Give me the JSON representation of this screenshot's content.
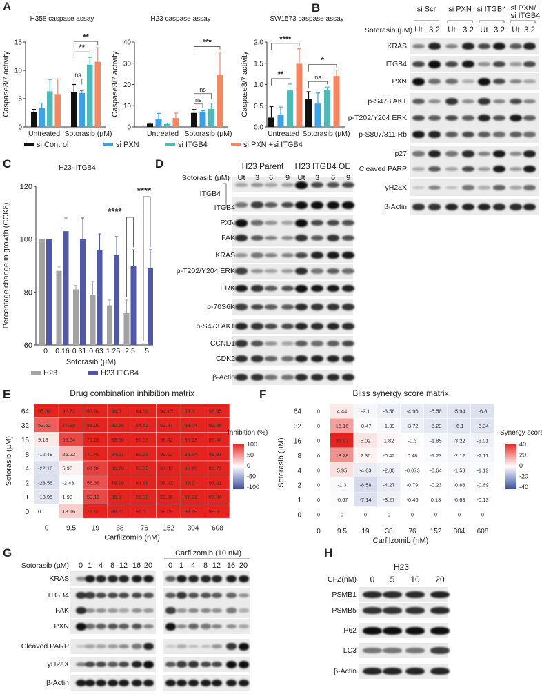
{
  "panels": {
    "A": "A",
    "B": "B",
    "C": "C",
    "D": "D",
    "E": "E",
    "F": "F",
    "G": "G",
    "H": "H"
  },
  "colors": {
    "si_control": "#111111",
    "si_pxn": "#3aa0e8",
    "si_itgb4": "#4fb8b8",
    "si_pxn_itgb4": "#f4875f",
    "h23": "#a3a3a3",
    "h23_itgb4": "#5059a8",
    "heat_pos": "#e52420",
    "heat_neg": "#3b4fa0"
  },
  "legendA": [
    "si Control",
    "si PXN",
    "si ITGB4",
    "si PXN +si ITGB4"
  ],
  "chart_data": [
    {
      "type": "bar",
      "title": "H358 caspase assay",
      "ylabel": "Caspase3/7 activity",
      "ylim": [
        0,
        15
      ],
      "yticks": [
        "0",
        "5",
        "10",
        "15"
      ],
      "categories": [
        "Untreated",
        "Sotorasib (µM)"
      ],
      "series": [
        {
          "name": "si Control",
          "values": [
            2.6,
            6.1
          ],
          "errors": [
            0.5,
            1.4
          ]
        },
        {
          "name": "si PXN",
          "values": [
            3.3,
            6.0
          ],
          "errors": [
            0.9,
            0.4
          ]
        },
        {
          "name": "si ITGB4",
          "values": [
            6.3,
            11.0
          ],
          "errors": [
            2.1,
            1.3
          ]
        },
        {
          "name": "si PXN +si ITGB4",
          "values": [
            5.8,
            11.5
          ],
          "errors": [
            2.7,
            2.5
          ]
        }
      ],
      "significance": [
        {
          "group": 1,
          "from": 0,
          "to": 1,
          "label": "ns"
        },
        {
          "group": 1,
          "from": 0,
          "to": 2,
          "label": "**"
        },
        {
          "group": 1,
          "from": 0,
          "to": 3,
          "label": "**"
        }
      ]
    },
    {
      "type": "bar",
      "title": "H23 caspase assay",
      "ylabel": "Caspase3/7 activity",
      "ylim": [
        0,
        40
      ],
      "yticks": [
        "0",
        "10",
        "20",
        "30",
        "40"
      ],
      "categories": [
        "Untreated",
        "Sotorasib (µM)"
      ],
      "series": [
        {
          "name": "si Control",
          "values": [
            1.5,
            6.6
          ],
          "errors": [
            0.3,
            1.6
          ]
        },
        {
          "name": "si PXN",
          "values": [
            3.9,
            7.2
          ],
          "errors": [
            2.5,
            0.4
          ]
        },
        {
          "name": "si ITGB4",
          "values": [
            1.3,
            8.5
          ],
          "errors": [
            0.5,
            2.7
          ]
        },
        {
          "name": "si PXN +si ITGB4",
          "values": [
            4.2,
            24.7
          ],
          "errors": [
            2.3,
            10.6
          ]
        }
      ],
      "significance": [
        {
          "group": 1,
          "from": 0,
          "to": 1,
          "label": "ns"
        },
        {
          "group": 1,
          "from": 0,
          "to": 2,
          "label": "ns"
        },
        {
          "group": 1,
          "from": 0,
          "to": 3,
          "label": "***"
        }
      ]
    },
    {
      "type": "bar",
      "title": "SW1573 caspase assay",
      "ylabel": "Caspase3/7 activity",
      "ylim": [
        0,
        2
      ],
      "yticks": [
        "0.0",
        "0.5",
        "1.0",
        "1.5",
        "2.0"
      ],
      "categories": [
        "Untreated",
        "Sotorasib (µM)"
      ],
      "series": [
        {
          "name": "si Control",
          "values": [
            0.22,
            0.65
          ],
          "errors": [
            0.26,
            0.18
          ]
        },
        {
          "name": "si PXN",
          "values": [
            0.29,
            0.55
          ],
          "errors": [
            0.18,
            0.25
          ]
        },
        {
          "name": "si ITGB4",
          "values": [
            0.86,
            0.87
          ],
          "errors": [
            0.15,
            0.07
          ]
        },
        {
          "name": "si PXN +si ITGB4",
          "values": [
            1.49,
            1.2
          ],
          "errors": [
            0.35,
            0.14
          ]
        }
      ],
      "significance": [
        {
          "group": 0,
          "from": 0,
          "to": 2,
          "label": "**"
        },
        {
          "group": 0,
          "from": 0,
          "to": 3,
          "label": "****"
        },
        {
          "group": 1,
          "from": 0,
          "to": 2,
          "label": "ns"
        },
        {
          "group": 1,
          "from": 0,
          "to": 3,
          "label": "*"
        }
      ]
    },
    {
      "type": "bar",
      "title": "H23- ITGB4",
      "ylabel": "Percentage change in growth (CCK8)",
      "xlabel": "Sotorasib (µM)",
      "ylim": [
        60,
        120
      ],
      "yticks": [
        "60",
        "80",
        "100",
        "120"
      ],
      "categories": [
        "0",
        "0.16",
        "0.31",
        "0.63",
        "1.25",
        "2.5",
        "5"
      ],
      "series": [
        {
          "name": "H23",
          "values": [
            100,
            88,
            81,
            79,
            75,
            72,
            60
          ],
          "errors": [
            0,
            1.5,
            1.5,
            5,
            2,
            5,
            0.5
          ]
        },
        {
          "name": "H23 ITGB4",
          "values": [
            100,
            103,
            100,
            96,
            94,
            90,
            89
          ],
          "errors": [
            0,
            5,
            8,
            6,
            7,
            6,
            7
          ]
        }
      ],
      "significance": [
        {
          "category": 5,
          "label": "****"
        },
        {
          "category": 6,
          "label": "****"
        }
      ]
    },
    {
      "type": "heatmap",
      "title": "Drug combination inhibition matrix",
      "xlabel": "Carfilzomib (nM)",
      "ylabel": "Sotorasib (µM)",
      "legend_title": "Inhibition (%)",
      "legend_ticks": [
        "100",
        "50",
        "0",
        "-50",
        "-100"
      ],
      "range": [
        -100,
        100
      ],
      "x": [
        "0",
        "9.5",
        "19",
        "38",
        "76",
        "152",
        "304",
        "608"
      ],
      "y": [
        "64",
        "32",
        "16",
        "8",
        "4",
        "2",
        "1",
        "0"
      ],
      "values": [
        [
          85.89,
          92.72,
          93.84,
          94.5,
          94.54,
          94.15,
          93.8,
          92.95
        ],
        [
          52.62,
          77.39,
          88.09,
          92.26,
          94.62,
          93.87,
          93.04,
          92.85
        ],
        [
          9.18,
          59.64,
          79.26,
          89.66,
          96.53,
          96.42,
          95.13,
          95.44
        ],
        [
          -12.48,
          26.22,
          70.46,
          84.51,
          96.55,
          96.62,
          95.84,
          95.97
        ],
        [
          -22.18,
          5.96,
          61.32,
          80.78,
          95.85,
          97.02,
          96.26,
          96.72
        ],
        [
          -23.56,
          -2.43,
          56.36,
          79.18,
          94.88,
          97.42,
          96.9,
          97.21
        ],
        [
          -18.95,
          1.98,
          59.11,
          80.8,
          95.38,
          97.86,
          97.21,
          97.84
        ],
        [
          0,
          18.16,
          71.63,
          86.61,
          96.5,
          98.09,
          98.19,
          98.3
        ]
      ]
    },
    {
      "type": "heatmap",
      "title": "Bliss synergy score matrix",
      "xlabel": "Carfilzomib (nM)",
      "ylabel": "Sotorasib (µM)",
      "legend_title": "Synergy score",
      "legend_ticks": [
        "40",
        "20",
        "0",
        "-20",
        "-40"
      ],
      "range": [
        -40,
        40
      ],
      "x": [
        "0",
        "9.5",
        "19",
        "38",
        "76",
        "152",
        "304",
        "608"
      ],
      "y": [
        "64",
        "32",
        "16",
        "8",
        "4",
        "2",
        "1",
        "0"
      ],
      "values": [
        [
          0,
          4.44,
          -2.1,
          -3.58,
          -4.96,
          -5.58,
          -5.94,
          -6.8
        ],
        [
          0,
          16.16,
          -0.47,
          -1.39,
          -3.72,
          -5.23,
          -6.1,
          -6.34
        ],
        [
          0,
          33.97,
          5.02,
          1.82,
          -0.3,
          -1.85,
          -3.22,
          -3.01
        ],
        [
          0,
          18.28,
          2.36,
          -0.42,
          0.48,
          -1.23,
          -2.12,
          -2.11
        ],
        [
          0,
          5.95,
          -4.03,
          -2.86,
          -0.073,
          -0.64,
          -1.53,
          -1.19
        ],
        [
          0,
          -1.3,
          -8.58,
          -4.27,
          -0.79,
          -0.23,
          -0.86,
          -0.69
        ],
        [
          0,
          -0.67,
          -7.14,
          -3.27,
          -0.46,
          0.13,
          -0.63,
          -0.13
        ],
        [
          0,
          0,
          0,
          0,
          0,
          0,
          0,
          0
        ]
      ]
    }
  ],
  "blotB": {
    "groups": [
      "si Scr",
      "si PXN",
      "si ITGB4",
      "si PXN/\nsi ITGB4"
    ],
    "treat_label": "Sotorasib (µM)",
    "lanes": [
      "Ut",
      "3.2",
      "Ut",
      "3.2",
      "Ut",
      "3.2",
      "Ut",
      "3.2"
    ],
    "rows": [
      {
        "label": "KRAS",
        "i": [
          0.4,
          0.9,
          0.4,
          0.9,
          0.7,
          0.95,
          0.6,
          0.9
        ]
      },
      {
        "label": "ITGB4",
        "i": [
          0.7,
          1,
          0.7,
          0.95,
          0.3,
          0.7,
          0.25,
          0.7
        ]
      },
      {
        "label": "PXN",
        "i": [
          1,
          0.5,
          0.5,
          0.15,
          1,
          0.7,
          0.4,
          0.2
        ]
      },
      {
        "label": "p-S473 AKT",
        "i": [
          0.6,
          0.35,
          0.8,
          0.35,
          0.8,
          0.4,
          0.7,
          0.4
        ]
      },
      {
        "label": "p-T202/Y204 ERK",
        "i": [
          0.7,
          0.6,
          0.7,
          0.6,
          0.9,
          0.65,
          0.95,
          0.6
        ]
      },
      {
        "label": "p-S807/811 Rb",
        "i": [
          0.95,
          0.9,
          0.6,
          0.7,
          0.6,
          0.5,
          0.6,
          0.5
        ]
      },
      {
        "label": "p27",
        "i": [
          0.45,
          0.9,
          0.45,
          0.85,
          0.4,
          0.95,
          0.35,
          0.9
        ]
      },
      {
        "label": "Cleaved PARP",
        "i": [
          0.15,
          0.6,
          0.2,
          0.7,
          0.25,
          0.95,
          0.25,
          0.95
        ]
      },
      {
        "label": "γH2aX",
        "i": [
          0.05,
          0.4,
          0.1,
          0.45,
          0.15,
          0.55,
          0.2,
          0.5
        ]
      },
      {
        "label": "β-Actin",
        "i": [
          0.8,
          0.8,
          0.9,
          0.9,
          0.9,
          0.85,
          0.85,
          0.9
        ]
      }
    ]
  },
  "blotD": {
    "groups": [
      "H23 Parent",
      "H23 ITGB4 OE"
    ],
    "treat_label": "Sotorasib (µM)",
    "lanes": [
      "Ut",
      "3",
      "6",
      "9",
      "Ut",
      "3",
      "6",
      "9"
    ],
    "rows": [
      {
        "label": "",
        "i": [
          0.2,
          0.3,
          0.2,
          0.25,
          1,
          0.7,
          0.65,
          0.7
        ]
      },
      {
        "label": "ITGB4",
        "i": [
          0.45,
          0.75,
          0.6,
          0.7,
          1,
          1,
          1,
          1
        ]
      },
      {
        "label": "PXN",
        "i": [
          1,
          0.5,
          0.3,
          0.2,
          1,
          0.7,
          0.7,
          0.65
        ]
      },
      {
        "label": "FAK",
        "i": [
          0.85,
          0.6,
          0.4,
          0.35,
          0.8,
          0.6,
          0.8,
          0.65
        ]
      },
      {
        "label": "KRAS",
        "i": [
          0.3,
          0.45,
          0.4,
          0.4,
          0.7,
          0.9,
          0.95,
          0.95
        ]
      },
      {
        "label": "p-T202/Y204 ERK",
        "i": [
          0.75,
          0.3,
          0.2,
          0.25,
          0.85,
          0.45,
          0.6,
          0.5
        ]
      },
      {
        "label": "ERK",
        "i": [
          0.95,
          0.8,
          0.6,
          0.65,
          1,
          0.95,
          0.95,
          0.9
        ]
      },
      {
        "label": "p-70S6K",
        "i": [
          0.75,
          0.7,
          0.6,
          0.6,
          0.85,
          0.8,
          0.8,
          0.8
        ]
      },
      {
        "label": "p-S473 AKT",
        "i": [
          0.9,
          0.8,
          0.7,
          0.7,
          0.9,
          0.85,
          0.9,
          0.85
        ]
      },
      {
        "label": "CCND1",
        "i": [
          0.8,
          0.65,
          0.3,
          0.2,
          0.6,
          0.5,
          0.6,
          0.7
        ]
      },
      {
        "label": "CDK2",
        "i": [
          0.85,
          0.8,
          0.55,
          0.5,
          0.9,
          0.9,
          0.9,
          0.85
        ]
      },
      {
        "label": "β-Actin",
        "i": [
          0.85,
          0.8,
          0.45,
          0.45,
          0.85,
          0.85,
          0.85,
          0.85
        ]
      }
    ],
    "bracket_label": "ITGB4"
  },
  "blotG": {
    "treat_label": "Sotorasib (µM)",
    "group_label": "Carfilzomib (10 nM)",
    "lanes": [
      "0",
      "1",
      "4",
      "8",
      "12",
      "16",
      "20",
      "0",
      "1",
      "4",
      "8",
      "12",
      "16",
      "20"
    ],
    "rows": [
      {
        "label": "KRAS",
        "i": [
          0.4,
          0.95,
          0.9,
          0.9,
          0.9,
          0.95,
          0.95,
          0.6,
          0.95,
          0.9,
          0.9,
          0.9,
          0.95,
          0.95
        ]
      },
      {
        "label": "ITGB4",
        "i": [
          0.8,
          0.75,
          0.7,
          0.7,
          0.7,
          0.7,
          0.65,
          0.6,
          0.8,
          0.65,
          0.65,
          0.6,
          0.55,
          0.3
        ]
      },
      {
        "label": "FAK",
        "i": [
          0.85,
          0.35,
          0.35,
          0.3,
          0.2,
          0.35,
          0.3,
          0.75,
          0.3,
          0.4,
          0.4,
          0.35,
          0.45,
          0.15
        ]
      },
      {
        "label": "PXN",
        "i": [
          1,
          0.5,
          0.6,
          0.65,
          0.6,
          0.65,
          0.4,
          1,
          0.35,
          0.55,
          0.45,
          0.4,
          0.35,
          0.2
        ]
      },
      {
        "label": "Cleaved PARP",
        "i": [
          0.05,
          0.2,
          0.2,
          0.25,
          0.35,
          0.45,
          0.9,
          0.05,
          0.15,
          0.1,
          0.1,
          0.3,
          0.8,
          1
        ]
      },
      {
        "label": "γH2aX",
        "i": [
          0.4,
          0.7,
          0.7,
          0.6,
          0.7,
          0.9,
          1,
          0.6,
          0.75,
          0.8,
          0.7,
          0.7,
          1,
          1
        ]
      },
      {
        "label": "β-Actin",
        "i": [
          0.95,
          0.95,
          0.95,
          0.95,
          0.95,
          0.95,
          0.95,
          0.95,
          0.95,
          0.95,
          0.95,
          0.95,
          0.95,
          0.95
        ]
      }
    ]
  },
  "blotH": {
    "title": "H23",
    "treat_label": "CFZ(nM)",
    "lanes": [
      "0",
      "5",
      "10",
      "20"
    ],
    "rows": [
      {
        "label": "PSMB1",
        "i": [
          0.85,
          0.85,
          0.85,
          0.9
        ]
      },
      {
        "label": "PSMB5",
        "i": [
          0.8,
          0.8,
          0.8,
          0.85
        ]
      },
      {
        "label": "P62",
        "i": [
          1,
          1,
          1,
          1
        ]
      },
      {
        "label": "LC3",
        "i": [
          0.45,
          0.45,
          0.45,
          0.75
        ]
      },
      {
        "label": "β-Actin",
        "i": [
          0.9,
          0.9,
          0.9,
          0.9
        ]
      }
    ]
  }
}
